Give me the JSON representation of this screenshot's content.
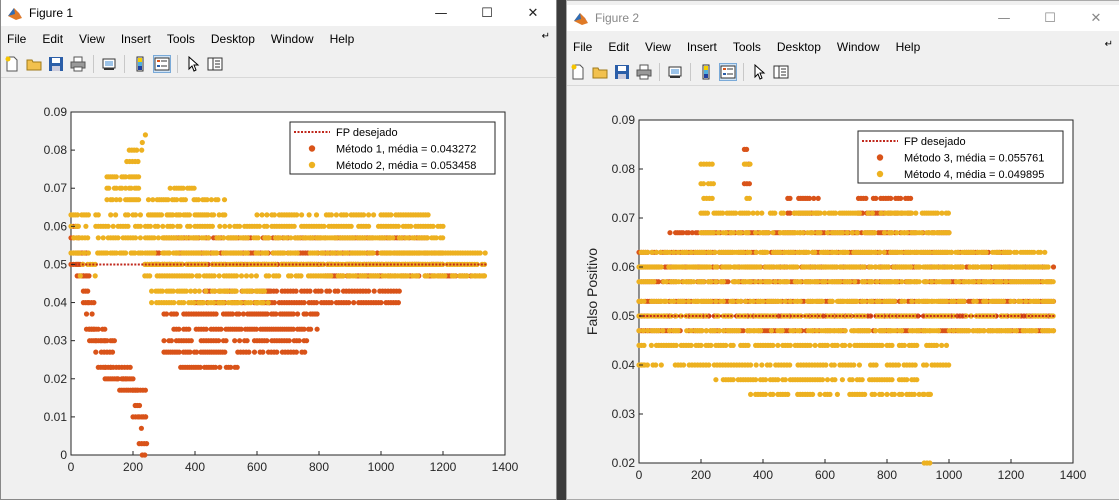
{
  "windows": [
    {
      "title": "Figure 1",
      "menu": [
        "File",
        "Edit",
        "View",
        "Insert",
        "Tools",
        "Desktop",
        "Window",
        "Help"
      ],
      "toolbar_icons": [
        "new-figure-icon",
        "open-icon",
        "save-icon",
        "print-icon",
        "link-plot-icon",
        "colorbar-icon",
        "legend-icon",
        "pointer-icon",
        "property-inspector-icon"
      ]
    },
    {
      "title": "Figure 2",
      "menu": [
        "File",
        "Edit",
        "View",
        "Insert",
        "Tools",
        "Desktop",
        "Window",
        "Help"
      ],
      "toolbar_icons": [
        "new-figure-icon",
        "open-icon",
        "save-icon",
        "print-icon",
        "link-plot-icon",
        "colorbar-icon",
        "legend-icon",
        "pointer-icon",
        "property-inspector-icon"
      ]
    }
  ],
  "colors": {
    "series_a": "#d95319",
    "series_b": "#edb120",
    "target": "#c0281c"
  },
  "chart_data": [
    {
      "type": "scatter",
      "title": "",
      "xlabel": "",
      "ylabel": "",
      "xlim": [
        0,
        1400
      ],
      "ylim": [
        0,
        0.09
      ],
      "xticks": [
        0,
        200,
        400,
        600,
        800,
        1000,
        1200,
        1400
      ],
      "yticks": [
        0,
        0.01,
        0.02,
        0.03,
        0.04,
        0.05,
        0.06,
        0.07,
        0.08,
        0.09
      ],
      "xtick_labels": [
        "0",
        "200",
        "400",
        "600",
        "800",
        "1000",
        "1200",
        "1400"
      ],
      "ytick_labels": [
        "0",
        "0.01",
        "0.02",
        "0.03",
        "0.04",
        "0.05",
        "0.06",
        "0.07",
        "0.08",
        "0.09"
      ],
      "legend": {
        "placement": "top-right",
        "entries": [
          "FP desejado",
          "Método 1, média = 0.043272",
          "Método 2, média = 0.053458"
        ]
      },
      "target_line": {
        "name": "FP desejado",
        "y": 0.05,
        "x": [
          1,
          1340
        ]
      },
      "series": [
        {
          "name": "Método 1, média = 0.043272",
          "color": "#d95319",
          "segments": [
            {
              "x": [
                0,
                30
              ],
              "levels": [
                0.05,
                0.053,
                0.057,
                0.06
              ]
            },
            {
              "x": [
                20,
                50
              ],
              "levels": [
                0.047,
                0.05,
                0.053
              ]
            },
            {
              "x": [
                40,
                60
              ],
              "levels": [
                0.04,
                0.043,
                0.047
              ]
            },
            {
              "x": [
                50,
                80
              ],
              "levels": [
                0.033,
                0.037,
                0.04
              ]
            },
            {
              "x": [
                60,
                110
              ],
              "levels": [
                0.03,
                0.033
              ]
            },
            {
              "x": [
                80,
                140
              ],
              "levels": [
                0.023,
                0.027,
                0.03
              ]
            },
            {
              "x": [
                110,
                200
              ],
              "levels": [
                0.02,
                0.023
              ]
            },
            {
              "x": [
                150,
                220
              ],
              "levels": [
                0.017,
                0.02
              ]
            },
            {
              "x": [
                200,
                240
              ],
              "levels": [
                0.01,
                0.013,
                0.017
              ]
            },
            {
              "x": [
                220,
                245
              ],
              "levels": [
                0.003,
                0.007,
                0.01
              ]
            },
            {
              "x": [
                230,
                245
              ],
              "levels": [
                0.0
              ]
            },
            {
              "x": [
                300,
                500
              ],
              "levels": [
                0.027,
                0.03,
                0.033,
                0.037
              ]
            },
            {
              "x": [
                340,
                540
              ],
              "levels": [
                0.023
              ]
            },
            {
              "x": [
                400,
                640
              ],
              "levels": [
                0.04,
                0.043
              ]
            },
            {
              "x": [
                500,
                800
              ],
              "levels": [
                0.033,
                0.037
              ]
            },
            {
              "x": [
                520,
                760
              ],
              "levels": [
                0.03,
                0.027
              ]
            },
            {
              "x": [
                600,
                1060
              ],
              "levels": [
                0.04,
                0.043
              ]
            },
            {
              "x": [
                800,
                1340
              ],
              "levels": [
                0.047
              ]
            },
            {
              "x": [
                260,
                1200
              ],
              "levels": [
                0.05,
                0.053
              ]
            },
            {
              "x": [
                300,
                1150
              ],
              "levels": [
                0.057
              ]
            }
          ]
        },
        {
          "name": "Método 2, média = 0.053458",
          "color": "#edb120",
          "segments": [
            {
              "x": [
                0,
                60
              ],
              "levels": [
                0.053,
                0.057,
                0.06,
                0.063
              ]
            },
            {
              "x": [
                30,
                80
              ],
              "levels": [
                0.047,
                0.05
              ]
            },
            {
              "x": [
                80,
                230
              ],
              "levels": [
                0.053,
                0.057,
                0.06,
                0.063
              ]
            },
            {
              "x": [
                110,
                220
              ],
              "levels": [
                0.067,
                0.07,
                0.073
              ]
            },
            {
              "x": [
                180,
                230
              ],
              "levels": [
                0.077,
                0.08
              ]
            },
            {
              "x": [
                240,
                1200
              ],
              "levels": [
                0.05,
                0.053,
                0.057,
                0.06
              ]
            },
            {
              "x": [
                250,
                500
              ],
              "levels": [
                0.063,
                0.067
              ]
            },
            {
              "x": [
                320,
                400
              ],
              "levels": [
                0.07
              ]
            },
            {
              "x": [
                230,
                1340
              ],
              "levels": [
                0.047,
                0.05
              ]
            },
            {
              "x": [
                600,
                1160
              ],
              "levels": [
                0.063
              ]
            },
            {
              "x": [
                260,
                640
              ],
              "levels": [
                0.043,
                0.04
              ]
            },
            {
              "x": [
                1000,
                1340
              ],
              "levels": [
                0.053
              ]
            },
            {
              "x": [
                240,
                245
              ],
              "levels": [
                0.084
              ]
            },
            {
              "x": [
                230,
                235
              ],
              "levels": [
                0.082
              ]
            }
          ]
        }
      ]
    },
    {
      "type": "scatter",
      "title": "",
      "xlabel": "",
      "ylabel": "Falso Positivo",
      "xlim": [
        0,
        1400
      ],
      "ylim": [
        0.02,
        0.09
      ],
      "xticks": [
        0,
        200,
        400,
        600,
        800,
        1000,
        1200,
        1400
      ],
      "yticks": [
        0.02,
        0.03,
        0.04,
        0.05,
        0.06,
        0.07,
        0.08,
        0.09
      ],
      "xtick_labels": [
        "0",
        "200",
        "400",
        "600",
        "800",
        "1000",
        "1200",
        "1400"
      ],
      "ytick_labels": [
        "0.02",
        "0.03",
        "0.04",
        "0.05",
        "0.06",
        "0.07",
        "0.08",
        "0.09"
      ],
      "legend": {
        "placement": "top-right",
        "entries": [
          "FP desejado",
          "Método 3, média = 0.055761",
          "Método 4, média = 0.049895"
        ]
      },
      "target_line": {
        "name": "FP desejado",
        "y": 0.05,
        "x": [
          1,
          1340
        ]
      },
      "series": [
        {
          "name": "Método 3, média = 0.055761",
          "color": "#d95319",
          "segments": [
            {
              "x": [
                0,
                1340
              ],
              "levels": [
                0.05,
                0.053,
                0.057,
                0.06
              ]
            },
            {
              "x": [
                0,
                1200
              ],
              "levels": [
                0.063
              ]
            },
            {
              "x": [
                100,
                1000
              ],
              "levels": [
                0.067
              ]
            },
            {
              "x": [
                340,
                360
              ],
              "levels": [
                0.077,
                0.081,
                0.084
              ]
            },
            {
              "x": [
                480,
                580
              ],
              "levels": [
                0.071,
                0.074
              ]
            },
            {
              "x": [
                700,
                880
              ],
              "levels": [
                0.071,
                0.074
              ]
            },
            {
              "x": [
                0,
                1340
              ],
              "levels": [
                0.047
              ]
            }
          ]
        },
        {
          "name": "Método 4, média = 0.049895",
          "color": "#edb120",
          "segments": [
            {
              "x": [
                0,
                1340
              ],
              "levels": [
                0.047,
                0.05,
                0.053,
                0.057
              ]
            },
            {
              "x": [
                0,
                1320
              ],
              "levels": [
                0.06,
                0.063
              ]
            },
            {
              "x": [
                0,
                1000
              ],
              "levels": [
                0.044,
                0.04
              ]
            },
            {
              "x": [
                200,
                1000
              ],
              "levels": [
                0.067,
                0.071
              ]
            },
            {
              "x": [
                200,
                240
              ],
              "levels": [
                0.074,
                0.077,
                0.081
              ]
            },
            {
              "x": [
                240,
                900
              ],
              "levels": [
                0.037
              ]
            },
            {
              "x": [
                340,
                360
              ],
              "levels": [
                0.074,
                0.081
              ]
            },
            {
              "x": [
                360,
                960
              ],
              "levels": [
                0.034
              ]
            },
            {
              "x": [
                900,
                960
              ],
              "levels": [
                0.034
              ]
            },
            {
              "x": [
                920,
                940
              ],
              "levels": [
                0.02
              ]
            },
            {
              "x": [
                0,
                20
              ],
              "levels": [
                0.04
              ]
            }
          ]
        }
      ]
    }
  ]
}
